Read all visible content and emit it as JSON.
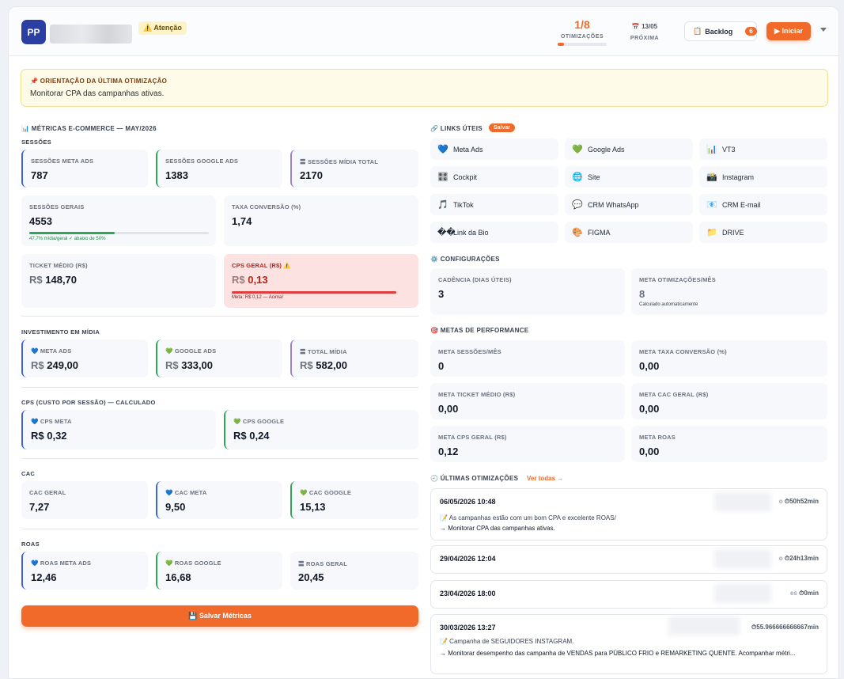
{
  "header": {
    "avatar": "PP",
    "warning": "⚠️ Atenção",
    "optimizations": {
      "count": "1/8",
      "label": "OTIMIZAÇÕES",
      "progress": 0.125
    },
    "next": {
      "date": "📅 13/05",
      "label": "PRÓXIMA"
    },
    "backlog": {
      "label": "Backlog",
      "count": "6"
    },
    "start": "▶ Iniciar"
  },
  "orientation": {
    "title": "📌 ORIENTAÇÃO DA ÚLTIMA OTIMIZAÇÃO",
    "text": "Monitorar CPA das campanhas ativas."
  },
  "metrics": {
    "title": "📊 MÉTRICAS E-COMMERCE — MAY/2026",
    "sessions": {
      "title": "SESSÕES",
      "meta": {
        "label": "SESSÕES META ADS",
        "value": "787"
      },
      "google": {
        "label": "SESSÕES GOOGLE ADS",
        "value": "1383"
      },
      "total": {
        "label": "〓 SESSÕES MÍDIA TOTAL",
        "value": "2170"
      },
      "general": {
        "label": "SESSÕES GERAIS",
        "value": "4553",
        "note": "47.7% mídia/geral ✓ abaixo de 50%",
        "ratio": 0.477
      },
      "conversion": {
        "label": "TAXA CONVERSÃO (%)",
        "value": "1,74"
      },
      "ticket": {
        "label": "TICKET MÉDIO (R$)",
        "currency": "R$",
        "value": "148,70"
      },
      "cps": {
        "label": "CPS GERAL (R$) ⚠️",
        "currency": "R$",
        "value": "0,13",
        "note": "Meta: R$ 0,12 — Acima!"
      }
    },
    "investment": {
      "title": "INVESTIMENTO EM MÍDIA",
      "meta": {
        "label": "💙 META ADS",
        "currency": "R$",
        "value": "249,00"
      },
      "google": {
        "label": "💚 GOOGLE ADS",
        "currency": "R$",
        "value": "333,00"
      },
      "total": {
        "label": "〓 TOTAL MÍDIA",
        "currency": "R$",
        "value": "582,00"
      }
    },
    "cps_calc": {
      "title": "CPS (CUSTO POR SESSÃO) — CALCULADO",
      "meta": {
        "label": "💙 CPS META",
        "value": "R$ 0,32"
      },
      "google": {
        "label": "💚 CPS GOOGLE",
        "value": "R$ 0,24"
      }
    },
    "cac": {
      "title": "CAC",
      "general": {
        "label": "CAC GERAL",
        "value": "7,27"
      },
      "meta": {
        "label": "💙 CAC META",
        "value": "9,50"
      },
      "google": {
        "label": "💚 CAC GOOGLE",
        "value": "15,13"
      }
    },
    "roas": {
      "title": "ROAS",
      "meta": {
        "label": "💙 ROAS META ADS",
        "value": "12,46"
      },
      "google": {
        "label": "💚 ROAS GOOGLE",
        "value": "16,68"
      },
      "general": {
        "label": "〓 ROAS GERAL",
        "value": "20,45"
      }
    },
    "save": "💾 Salvar Métricas"
  },
  "links": {
    "title": "🔗 LINKS ÚTEIS",
    "save": "Salvar",
    "items": [
      {
        "icon": "💙",
        "label": "Meta Ads"
      },
      {
        "icon": "💚",
        "label": "Google Ads"
      },
      {
        "icon": "📊",
        "label": "VT3"
      },
      {
        "icon": "🎛️",
        "label": "Cockpit"
      },
      {
        "icon": "🌐",
        "label": "Site"
      },
      {
        "icon": "📸",
        "label": "Instagram"
      },
      {
        "icon": "🎵",
        "label": "TikTok"
      },
      {
        "icon": "💬",
        "label": "CRM WhatsApp"
      },
      {
        "icon": "📧",
        "label": "CRM E-mail"
      },
      {
        "icon": "��",
        "label": "Link da Bio"
      },
      {
        "icon": "🎨",
        "label": "FIGMA"
      },
      {
        "icon": "📁",
        "label": "DRIVE"
      }
    ]
  },
  "config": {
    "title": "⚙️ CONFIGURAÇÕES",
    "cadence": {
      "label": "CADÊNCIA (DIAS ÚTEIS)",
      "value": "3"
    },
    "meta_opt": {
      "label": "META OTIMIZAÇÕES/MÊS",
      "value": "8",
      "note": "Calculado automaticamente"
    }
  },
  "goals": {
    "title": "🎯 METAS DE PERFORMANCE",
    "items": [
      {
        "label": "META SESSÕES/MÊS",
        "value": "0"
      },
      {
        "label": "META TAXA CONVERSÃO (%)",
        "value": "0,00"
      },
      {
        "label": "META TICKET MÉDIO (R$)",
        "value": "0,00"
      },
      {
        "label": "META CAC GERAL (R$)",
        "value": "0,00"
      },
      {
        "label": "META CPS GERAL (R$)",
        "value": "0,12"
      },
      {
        "label": "META ROAS",
        "value": "0,00"
      }
    ]
  },
  "history": {
    "title": "🕘 ÚLTIMAS OTIMIZAÇÕES",
    "see_all": "Ver todas →",
    "items": [
      {
        "date": "06/05/2026 10:48",
        "duration_prefix": "o",
        "duration": "⏱50h52min",
        "note": "📝 As campanhas estão com um bom CPA e excelente ROAS/",
        "action": "→ Monitorar CPA das campanhas ativas."
      },
      {
        "date": "29/04/2026 12:04",
        "duration_prefix": "o",
        "duration": "⏱24h13min"
      },
      {
        "date": "23/04/2026 18:00",
        "duration_prefix": "es",
        "duration": "⏱0min"
      },
      {
        "date": "30/03/2026 13:27",
        "duration_prefix": "",
        "duration": "⏱55.966666666667min",
        "note": "📝 Campanha de SEGUIDORES INSTAGRAM.",
        "action": "→ Monitorar desempenho das campanha de VENDAS para PÚBLICO FRIO e REMARKETING QUENTE. Acompanhar métri..."
      }
    ]
  }
}
